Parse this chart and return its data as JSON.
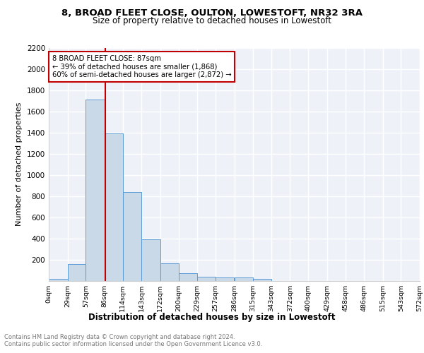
{
  "title1": "8, BROAD FLEET CLOSE, OULTON, LOWESTOFT, NR32 3RA",
  "title2": "Size of property relative to detached houses in Lowestoft",
  "xlabel": "Distribution of detached houses by size in Lowestoft",
  "ylabel": "Number of detached properties",
  "bar_edges": [
    0,
    29,
    57,
    86,
    114,
    143,
    172,
    200,
    229,
    257,
    286,
    315,
    343,
    372,
    400,
    429,
    458,
    486,
    515,
    543,
    572
  ],
  "bar_heights": [
    20,
    155,
    1710,
    1390,
    835,
    390,
    165,
    70,
    35,
    30,
    30,
    20,
    0,
    0,
    0,
    0,
    0,
    0,
    0,
    0
  ],
  "bar_color": "#c9d9e8",
  "bar_edge_color": "#5b9bd5",
  "property_size": 87,
  "vline_color": "#c00000",
  "annotation_text": "8 BROAD FLEET CLOSE: 87sqm\n← 39% of detached houses are smaller (1,868)\n60% of semi-detached houses are larger (2,872) →",
  "annotation_box_color": "white",
  "annotation_box_edge": "#c00000",
  "ylim": [
    0,
    2200
  ],
  "yticks": [
    0,
    200,
    400,
    600,
    800,
    1000,
    1200,
    1400,
    1600,
    1800,
    2000,
    2200
  ],
  "xtick_labels": [
    "0sqm",
    "29sqm",
    "57sqm",
    "86sqm",
    "114sqm",
    "143sqm",
    "172sqm",
    "200sqm",
    "229sqm",
    "257sqm",
    "286sqm",
    "315sqm",
    "343sqm",
    "372sqm",
    "400sqm",
    "429sqm",
    "458sqm",
    "486sqm",
    "515sqm",
    "543sqm",
    "572sqm"
  ],
  "footer1": "Contains HM Land Registry data © Crown copyright and database right 2024.",
  "footer2": "Contains public sector information licensed under the Open Government Licence v3.0.",
  "bg_color": "#eef2f8",
  "grid_color": "#ffffff"
}
